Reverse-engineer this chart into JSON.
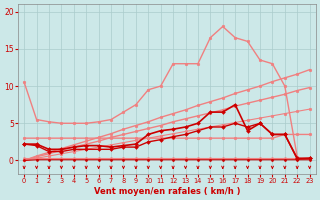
{
  "x": [
    0,
    1,
    2,
    3,
    4,
    5,
    6,
    7,
    8,
    9,
    10,
    11,
    12,
    13,
    14,
    15,
    16,
    17,
    18,
    19,
    20,
    21,
    22,
    23
  ],
  "series": [
    {
      "name": "pink_top_peaked",
      "color": "#f08080",
      "marker": "o",
      "markersize": 2.0,
      "linewidth": 1.0,
      "y": [
        10.5,
        5.5,
        5.2,
        5.0,
        5.0,
        5.0,
        5.2,
        5.5,
        6.5,
        7.5,
        9.5,
        10.0,
        13.0,
        13.0,
        13.0,
        16.5,
        18.0,
        16.5,
        16.0,
        13.5,
        13.0,
        10.0,
        0.5,
        null
      ]
    },
    {
      "name": "pink_upper_linear",
      "color": "#f08080",
      "marker": "o",
      "markersize": 2.0,
      "linewidth": 1.0,
      "y": [
        0.0,
        0.6,
        1.1,
        1.6,
        2.1,
        2.6,
        3.1,
        3.6,
        4.2,
        4.7,
        5.2,
        5.8,
        6.3,
        6.8,
        7.4,
        7.9,
        8.4,
        9.0,
        9.5,
        10.0,
        10.6,
        11.1,
        11.6,
        12.2
      ]
    },
    {
      "name": "pink_mid_linear",
      "color": "#f08080",
      "marker": "o",
      "markersize": 2.0,
      "linewidth": 1.0,
      "y": [
        0.0,
        0.5,
        0.9,
        1.4,
        1.8,
        2.2,
        2.6,
        3.1,
        3.5,
        3.9,
        4.3,
        4.7,
        5.2,
        5.6,
        6.0,
        6.4,
        6.8,
        7.3,
        7.7,
        8.1,
        8.5,
        8.9,
        9.4,
        9.8
      ]
    },
    {
      "name": "pink_lower_linear",
      "color": "#f08080",
      "marker": "o",
      "markersize": 2.0,
      "linewidth": 0.8,
      "y": [
        0.0,
        0.3,
        0.6,
        0.9,
        1.2,
        1.5,
        1.8,
        2.1,
        2.4,
        2.7,
        3.0,
        3.3,
        3.6,
        3.9,
        4.2,
        4.5,
        4.8,
        5.1,
        5.4,
        5.7,
        6.0,
        6.3,
        6.6,
        6.9
      ]
    },
    {
      "name": "pink_flat_low",
      "color": "#f08080",
      "marker": "o",
      "markersize": 2.0,
      "linewidth": 1.0,
      "y": [
        3.0,
        3.0,
        3.0,
        3.0,
        3.0,
        3.0,
        3.0,
        3.0,
        3.0,
        3.0,
        3.0,
        3.0,
        3.0,
        3.0,
        3.0,
        3.0,
        3.0,
        3.0,
        3.0,
        3.0,
        3.0,
        3.5,
        3.5,
        3.5
      ]
    },
    {
      "name": "pink_near_zero",
      "color": "#f08080",
      "marker": "o",
      "markersize": 1.5,
      "linewidth": 0.8,
      "y": [
        0.3,
        0.3,
        0.3,
        0.3,
        0.3,
        0.3,
        0.3,
        0.3,
        0.3,
        0.3,
        0.3,
        0.3,
        0.3,
        0.3,
        0.3,
        0.3,
        0.3,
        0.3,
        0.3,
        0.3,
        0.3,
        0.3,
        0.3,
        0.3
      ]
    },
    {
      "name": "red_main_peaked",
      "color": "#cc0000",
      "marker": "D",
      "markersize": 2.0,
      "linewidth": 1.2,
      "y": [
        2.2,
        2.2,
        1.5,
        1.5,
        1.8,
        2.0,
        2.0,
        1.8,
        2.0,
        2.2,
        3.5,
        4.0,
        4.2,
        4.5,
        5.0,
        6.5,
        6.5,
        7.5,
        4.0,
        5.0,
        3.5,
        3.5,
        0.3,
        0.3
      ]
    },
    {
      "name": "red_lower1",
      "color": "#cc0000",
      "marker": "D",
      "markersize": 2.0,
      "linewidth": 1.0,
      "y": [
        2.2,
        2.0,
        1.2,
        1.2,
        1.5,
        1.5,
        1.5,
        1.5,
        1.8,
        1.8,
        2.5,
        2.8,
        3.2,
        3.5,
        4.0,
        4.5,
        4.5,
        5.0,
        4.5,
        5.0,
        3.5,
        3.5,
        0.2,
        0.3
      ]
    },
    {
      "name": "red_near_zero",
      "color": "#cc0000",
      "marker": "D",
      "markersize": 1.5,
      "linewidth": 0.8,
      "y": [
        0.0,
        0.1,
        0.1,
        0.1,
        0.1,
        0.1,
        0.1,
        0.1,
        0.1,
        0.1,
        0.1,
        0.1,
        0.1,
        0.1,
        0.1,
        0.1,
        0.1,
        0.1,
        0.1,
        0.1,
        0.1,
        0.1,
        0.1,
        0.1
      ]
    }
  ],
  "xlabel": "Vent moyen/en rafales ( km/h )",
  "xlim": [
    -0.5,
    23.5
  ],
  "ylim": [
    -1.8,
    21
  ],
  "yticks": [
    0,
    5,
    10,
    15,
    20
  ],
  "xticks": [
    0,
    1,
    2,
    3,
    4,
    5,
    6,
    7,
    8,
    9,
    10,
    11,
    12,
    13,
    14,
    15,
    16,
    17,
    18,
    19,
    20,
    21,
    22,
    23
  ],
  "bg_color": "#cce8e8",
  "grid_color": "#aacccc",
  "tick_color": "#cc0000",
  "label_color": "#cc0000",
  "arrow_color": "#cc0000"
}
